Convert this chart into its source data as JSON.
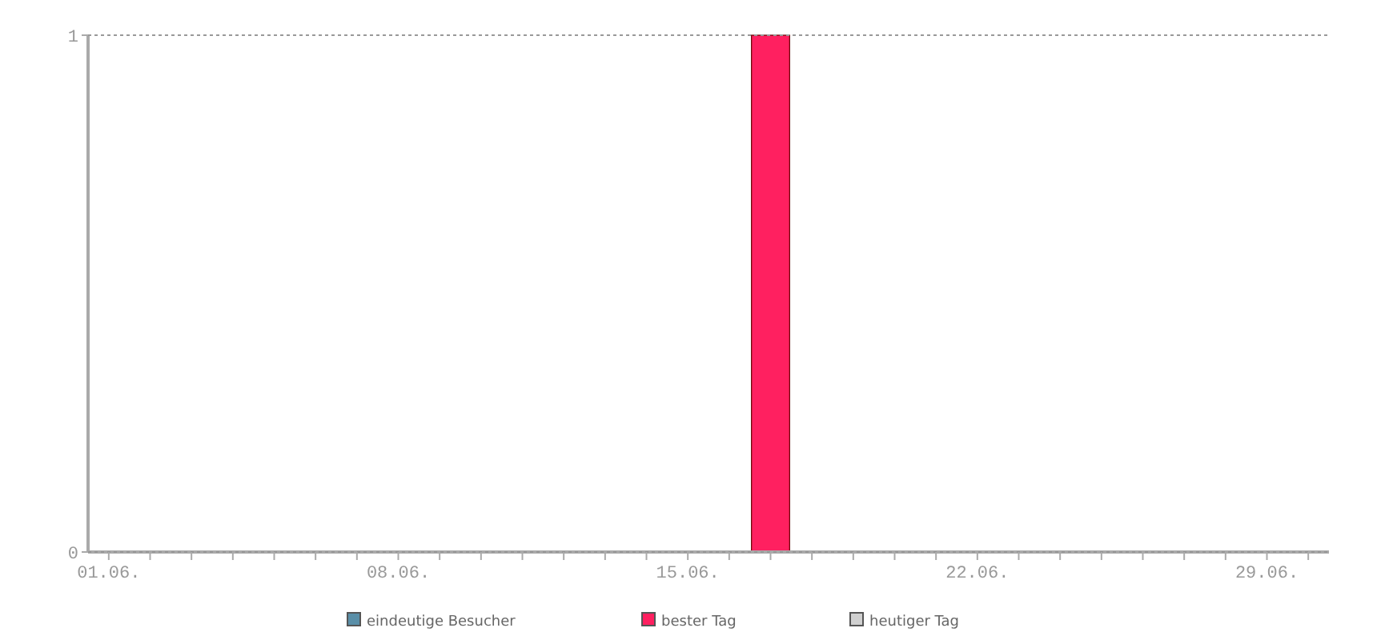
{
  "chart_data": {
    "type": "bar",
    "categories": [
      "01.06.",
      null,
      null,
      null,
      null,
      null,
      null,
      "08.06.",
      null,
      null,
      null,
      null,
      null,
      null,
      "15.06.",
      null,
      null,
      null,
      null,
      null,
      null,
      "22.06.",
      null,
      null,
      null,
      null,
      null,
      null,
      "29.06.",
      null
    ],
    "series": [
      {
        "name": "eindeutige Besucher",
        "color": "#5a8fa8",
        "values": [
          0,
          0,
          0,
          0,
          0,
          0,
          0,
          0,
          0,
          0,
          0,
          0,
          0,
          0,
          0,
          0,
          0,
          0,
          0,
          0,
          0,
          0,
          0,
          0,
          0,
          0,
          0,
          0,
          0,
          0
        ]
      },
      {
        "name": "bester Tag",
        "color": "#ff2060",
        "values": [
          null,
          null,
          null,
          null,
          null,
          null,
          null,
          null,
          null,
          null,
          null,
          null,
          null,
          null,
          null,
          null,
          1,
          null,
          null,
          null,
          null,
          null,
          null,
          null,
          null,
          null,
          null,
          null,
          null,
          null
        ]
      },
      {
        "name": "heutiger Tag",
        "color": "#d0d0d0",
        "values": [
          null,
          null,
          null,
          null,
          null,
          null,
          null,
          null,
          null,
          null,
          null,
          null,
          null,
          null,
          null,
          null,
          null,
          null,
          null,
          null,
          null,
          null,
          null,
          null,
          null,
          null,
          null,
          null,
          null,
          null
        ]
      }
    ],
    "ylim": [
      0,
      1
    ],
    "yticks": [
      0,
      1
    ],
    "grid": "y",
    "legend": "bottom"
  }
}
